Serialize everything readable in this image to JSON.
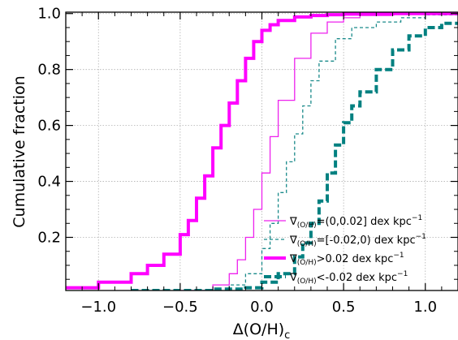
{
  "chart_data": {
    "type": "line",
    "xlabel": "Δ(O/H)",
    "xlabel_sub": "c",
    "ylabel": "Cumulative fraction",
    "xlim": [
      -1.2,
      1.2
    ],
    "ylim": [
      0.01,
      1.005
    ],
    "xticks": [
      -1.0,
      -0.5,
      0.0,
      0.5,
      1.0
    ],
    "xtick_labels": [
      "−1.0",
      "−0.5",
      "0.0",
      "0.5",
      "1.0"
    ],
    "yticks": [
      0.2,
      0.4,
      0.6,
      0.8,
      1.0
    ],
    "ytick_labels": [
      "0.2",
      "0.4",
      "0.6",
      "0.8",
      "1.0"
    ],
    "grid": true,
    "legend_position": "lower-right",
    "series": [
      {
        "name": "∇(O/H)=(0,0.02] dex kpc⁻¹",
        "legend_main": "∇",
        "legend_sub": "(O/H)",
        "legend_rest": "=(0,0.02] dex kpc",
        "legend_sup": "−1",
        "color": "#ee22ee",
        "style": "thin-solid",
        "x": [
          -0.5,
          -0.3,
          -0.2,
          -0.15,
          -0.1,
          -0.05,
          0.0,
          0.05,
          0.1,
          0.2,
          0.3,
          0.4,
          0.5,
          0.6,
          0.8,
          1.0,
          1.2
        ],
        "y": [
          0.01,
          0.03,
          0.07,
          0.12,
          0.2,
          0.3,
          0.43,
          0.56,
          0.69,
          0.84,
          0.93,
          0.97,
          0.985,
          0.993,
          0.998,
          1.0,
          1.0
        ]
      },
      {
        "name": "∇(O/H)=[-0.02,0) dex kpc⁻¹",
        "legend_main": "∇",
        "legend_sub": "(O/H)",
        "legend_rest": "=[-0.02,0) dex kpc",
        "legend_sup": "−1",
        "color": "#1a8a8a",
        "style": "thin-dashed",
        "x": [
          -0.4,
          -0.2,
          -0.1,
          0.0,
          0.05,
          0.1,
          0.15,
          0.2,
          0.25,
          0.3,
          0.35,
          0.45,
          0.55,
          0.7,
          0.85,
          1.0,
          1.2
        ],
        "y": [
          0.01,
          0.03,
          0.07,
          0.16,
          0.25,
          0.36,
          0.47,
          0.57,
          0.67,
          0.76,
          0.83,
          0.91,
          0.95,
          0.97,
          0.985,
          0.995,
          1.0
        ]
      },
      {
        "name": "∇(O/H)>0.02 dex kpc⁻¹",
        "legend_main": "∇",
        "legend_sub": "(O/H)",
        "legend_rest": ">0.02 dex kpc",
        "legend_sup": "−1",
        "color": "#ff00ff",
        "style": "thick-solid",
        "x": [
          -1.2,
          -1.0,
          -0.8,
          -0.7,
          -0.6,
          -0.5,
          -0.45,
          -0.4,
          -0.35,
          -0.3,
          -0.25,
          -0.2,
          -0.15,
          -0.1,
          -0.05,
          0.0,
          0.05,
          0.1,
          0.2,
          0.3,
          0.4,
          0.5,
          0.6,
          0.8,
          1.0,
          1.2
        ],
        "y": [
          0.02,
          0.04,
          0.07,
          0.1,
          0.14,
          0.21,
          0.26,
          0.34,
          0.42,
          0.52,
          0.6,
          0.68,
          0.76,
          0.84,
          0.9,
          0.94,
          0.96,
          0.975,
          0.988,
          0.993,
          0.996,
          0.998,
          0.999,
          1.0,
          1.0,
          1.0
        ]
      },
      {
        "name": "∇(O/H)<-0.02 dex kpc⁻¹",
        "legend_main": "∇",
        "legend_sub": "(O/H)",
        "legend_rest": "<-0.02 dex kpc",
        "legend_sup": "−1",
        "color": "#008080",
        "style": "thick-dashed",
        "x": [
          -0.8,
          -0.3,
          -0.1,
          0.0,
          0.1,
          0.2,
          0.25,
          0.3,
          0.35,
          0.4,
          0.45,
          0.5,
          0.55,
          0.6,
          0.7,
          0.8,
          0.9,
          1.0,
          1.1,
          1.2
        ],
        "y": [
          0.01,
          0.015,
          0.02,
          0.04,
          0.07,
          0.13,
          0.18,
          0.25,
          0.33,
          0.43,
          0.53,
          0.61,
          0.67,
          0.72,
          0.8,
          0.87,
          0.92,
          0.95,
          0.965,
          0.97
        ]
      }
    ]
  }
}
